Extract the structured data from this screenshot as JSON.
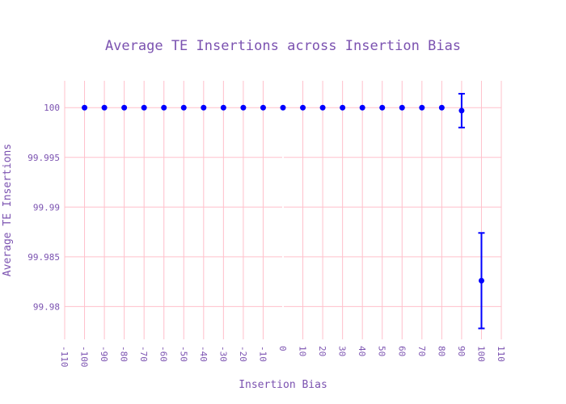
{
  "colors": {
    "background": "#ffffff",
    "grid": "#ffc0cb",
    "text": "#7b52b0",
    "marker": "#0000ff"
  },
  "chart_data": {
    "type": "scatter",
    "title": "Average TE Insertions across Insertion Bias",
    "xlabel": "Insertion Bias",
    "ylabel": "Average TE Insertions",
    "xlim": [
      -110,
      110
    ],
    "ylim": [
      99.9767,
      100.0027
    ],
    "x_ticks": [
      -110,
      -100,
      -90,
      -80,
      -70,
      -60,
      -50,
      -40,
      -30,
      -20,
      -10,
      0,
      10,
      20,
      30,
      40,
      50,
      60,
      70,
      80,
      90,
      100,
      110
    ],
    "y_ticks": [
      99.98,
      99.985,
      99.99,
      99.995,
      100
    ],
    "y_tick_labels": [
      "99.98",
      "99.985",
      "99.99",
      "99.995",
      "100"
    ],
    "grid": true,
    "series": [
      {
        "marker": "circle",
        "x": [
          -100,
          -90,
          -80,
          -70,
          -60,
          -50,
          -40,
          -30,
          -20,
          -10,
          0,
          10,
          20,
          30,
          40,
          50,
          60,
          70,
          80,
          90,
          100
        ],
        "y": [
          100,
          100,
          100,
          100,
          100,
          100,
          100,
          100,
          100,
          100,
          100,
          100,
          100,
          100,
          100,
          100,
          100,
          100,
          100,
          99.9997,
          99.9826
        ],
        "error": [
          0,
          0,
          0,
          0,
          0,
          0,
          0,
          0,
          0,
          0,
          0,
          0,
          0,
          0,
          0,
          0,
          0,
          0,
          0,
          0.0017,
          0.0048
        ]
      }
    ]
  }
}
